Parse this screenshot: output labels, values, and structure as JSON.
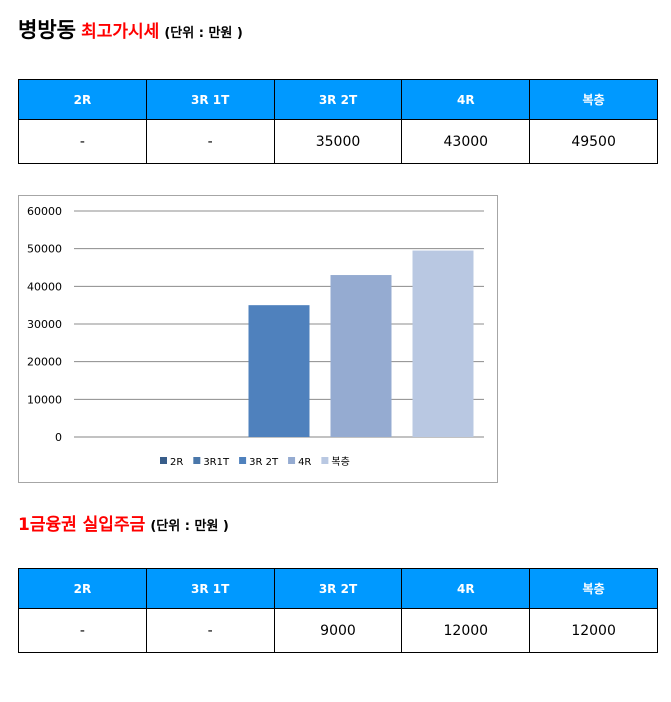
{
  "section1": {
    "location": "병방동",
    "subtitle": "최고가시세",
    "unit": "(단위 : 만원 )",
    "headers": [
      "2R",
      "3R 1T",
      "3R 2T",
      "4R",
      "복층"
    ],
    "values": [
      "-",
      "-",
      "35000",
      "43000",
      "49500"
    ]
  },
  "section2": {
    "title": "1금융권 실입주금",
    "unit": "(단위 : 만원 )",
    "headers": [
      "2R",
      "3R 1T",
      "3R 2T",
      "4R",
      "복층"
    ],
    "values": [
      "-",
      "-",
      "9000",
      "12000",
      "12000"
    ]
  },
  "colors": {
    "header_bg": "#0099ff",
    "title_red": "#ff0000",
    "series": [
      "#385d8a",
      "#4a77aa",
      "#4f81bd",
      "#95abd1",
      "#b9c8e2"
    ]
  },
  "chart_data": {
    "type": "bar",
    "categories": [
      ""
    ],
    "series": [
      {
        "name": "2R",
        "values": [
          0
        ]
      },
      {
        "name": "3R1T",
        "values": [
          0
        ]
      },
      {
        "name": "3R 2T",
        "values": [
          35000
        ]
      },
      {
        "name": "4R",
        "values": [
          43000
        ]
      },
      {
        "name": "복층",
        "values": [
          49500
        ]
      }
    ],
    "ylim": [
      0,
      60000
    ],
    "yticks": [
      "0",
      "10000",
      "20000",
      "30000",
      "40000",
      "50000",
      "60000"
    ],
    "grid": true,
    "legend": "bottom"
  }
}
